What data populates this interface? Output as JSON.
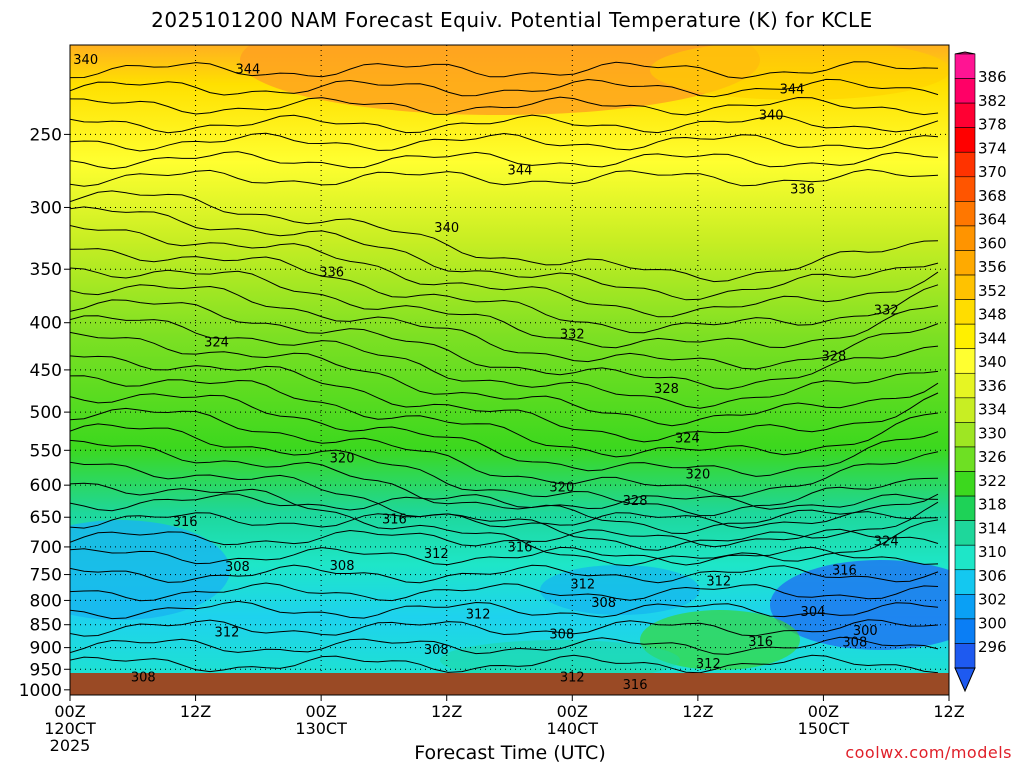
{
  "chart_data": {
    "type": "heatmap",
    "title": "2025101200 NAM Forecast Equiv. Potential Temperature (K) for KCLE",
    "xlabel": "Forecast Time (UTC)",
    "ylabel": "",
    "pressure_levels": [
      250,
      300,
      350,
      400,
      450,
      500,
      550,
      600,
      650,
      700,
      750,
      800,
      850,
      900,
      950,
      1000
    ],
    "ylim": [
      200,
      1013
    ],
    "y_scale": "log",
    "x_ticks": [
      {
        "hour": 0,
        "line1": "00Z",
        "line2": "120CT",
        "line3": "2025"
      },
      {
        "hour": 12,
        "line1": "12Z",
        "line2": "",
        "line3": ""
      },
      {
        "hour": 24,
        "line1": "00Z",
        "line2": "130CT",
        "line3": ""
      },
      {
        "hour": 36,
        "line1": "12Z",
        "line2": "",
        "line3": ""
      },
      {
        "hour": 48,
        "line1": "00Z",
        "line2": "140CT",
        "line3": ""
      },
      {
        "hour": 60,
        "line1": "12Z",
        "line2": "",
        "line3": ""
      },
      {
        "hour": 72,
        "line1": "00Z",
        "line2": "150CT",
        "line3": ""
      },
      {
        "hour": 84,
        "line1": "12Z",
        "line2": "",
        "line3": ""
      }
    ],
    "xlim": [
      0,
      84
    ],
    "colorbar": {
      "labels": [
        "386",
        "382",
        "378",
        "374",
        "370",
        "368",
        "364",
        "360",
        "356",
        "352",
        "348",
        "344",
        "340",
        "336",
        "334",
        "330",
        "326",
        "322",
        "318",
        "314",
        "310",
        "306",
        "302",
        "300",
        "296"
      ],
      "colors": [
        "#ff1493",
        "#ff0066",
        "#ff0033",
        "#ff0000",
        "#ff3300",
        "#ff5500",
        "#ff7700",
        "#ff9400",
        "#ffaa00",
        "#ffc200",
        "#ffdd00",
        "#fff000",
        "#ffff30",
        "#e6f523",
        "#c8ee23",
        "#9ee623",
        "#6ee023",
        "#3cd81e",
        "#1ed257",
        "#1ed79b",
        "#1ee6c8",
        "#14c8f0",
        "#0aa0f5",
        "#0a7ef5",
        "#1e5af0"
      ]
    },
    "contour_labels": [
      {
        "text": "340",
        "hour": 1.5,
        "p": 207
      },
      {
        "text": "344",
        "hour": 17,
        "p": 212
      },
      {
        "text": "344",
        "hour": 69,
        "p": 223
      },
      {
        "text": "340",
        "hour": 67,
        "p": 238
      },
      {
        "text": "344",
        "hour": 43,
        "p": 273
      },
      {
        "text": "336",
        "hour": 70,
        "p": 286
      },
      {
        "text": "340",
        "hour": 36,
        "p": 315
      },
      {
        "text": "336",
        "hour": 25,
        "p": 352
      },
      {
        "text": "332",
        "hour": 78,
        "p": 387
      },
      {
        "text": "332",
        "hour": 48,
        "p": 411
      },
      {
        "text": "324",
        "hour": 14,
        "p": 419
      },
      {
        "text": "328",
        "hour": 73,
        "p": 434
      },
      {
        "text": "328",
        "hour": 57,
        "p": 471
      },
      {
        "text": "324",
        "hour": 59,
        "p": 533
      },
      {
        "text": "320",
        "hour": 26,
        "p": 560
      },
      {
        "text": "320",
        "hour": 60,
        "p": 583
      },
      {
        "text": "320",
        "hour": 47,
        "p": 602
      },
      {
        "text": "328",
        "hour": 54,
        "p": 623
      },
      {
        "text": "316",
        "hour": 11,
        "p": 656
      },
      {
        "text": "316",
        "hour": 31,
        "p": 652
      },
      {
        "text": "324",
        "hour": 78,
        "p": 689
      },
      {
        "text": "312",
        "hour": 35,
        "p": 711
      },
      {
        "text": "316",
        "hour": 43,
        "p": 699
      },
      {
        "text": "308",
        "hour": 16,
        "p": 734
      },
      {
        "text": "308",
        "hour": 26,
        "p": 732
      },
      {
        "text": "316",
        "hour": 74,
        "p": 741
      },
      {
        "text": "312",
        "hour": 62,
        "p": 761
      },
      {
        "text": "312",
        "hour": 49,
        "p": 767
      },
      {
        "text": "308",
        "hour": 51,
        "p": 803
      },
      {
        "text": "304",
        "hour": 71,
        "p": 821
      },
      {
        "text": "312",
        "hour": 39,
        "p": 827
      },
      {
        "text": "300",
        "hour": 76,
        "p": 861
      },
      {
        "text": "312",
        "hour": 15,
        "p": 865
      },
      {
        "text": "308",
        "hour": 47,
        "p": 869
      },
      {
        "text": "316",
        "hour": 66,
        "p": 885
      },
      {
        "text": "308",
        "hour": 75,
        "p": 886
      },
      {
        "text": "308",
        "hour": 35,
        "p": 903
      },
      {
        "text": "312",
        "hour": 61,
        "p": 935
      },
      {
        "text": "312",
        "hour": 48,
        "p": 967
      },
      {
        "text": "308",
        "hour": 7,
        "p": 967
      },
      {
        "text": "316",
        "hour": 54,
        "p": 986
      }
    ]
  },
  "credit": "coolwx.com/models"
}
